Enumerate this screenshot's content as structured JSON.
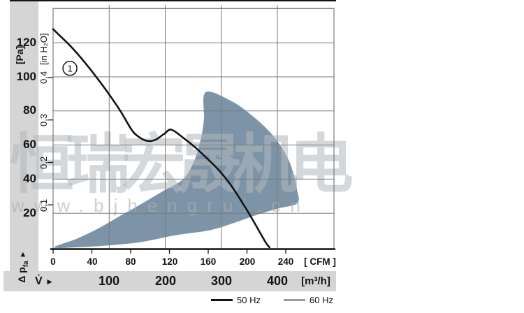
{
  "watermark": {
    "line1": "恒瑞宏晟机电",
    "line2": "www.bjhengrui.cn"
  },
  "colors": {
    "band": "#d5d5d5",
    "grid": "#7a7a7a",
    "axis": "#131313",
    "shade": "#7d94a8"
  },
  "chart_data": {
    "type": "line",
    "title": "",
    "description": "Fan air performance: pressure drop vs volume flow",
    "y_axis": {
      "primary_unit": "[Pa]",
      "secondary_unit": "[in H₂O]",
      "pa_ticks": [
        "120",
        "100",
        "80",
        "60",
        "40",
        "20"
      ],
      "inh2o_ticks": [
        "0,4",
        "0,3",
        "0,2",
        "0,1"
      ],
      "label_main": "Δ p",
      "label_sub": "fa",
      "label_arrow": "►",
      "pa_range": [
        0,
        141
      ]
    },
    "x_axis": {
      "cfm_ticks": [
        "0",
        "40",
        "80",
        "120",
        "160",
        "200",
        "240"
      ],
      "cfm_unit": "[ CFM ]",
      "m3h_ticks": [
        "100",
        "200",
        "300",
        "400"
      ],
      "m3h_unit": "[m³/h]",
      "label_v": "V̇",
      "label_arrow": "►",
      "m3h_range": [
        0,
        501
      ]
    },
    "grid": {
      "m3h_gridlines": [
        100,
        200,
        300,
        400
      ],
      "pa_gridlines": [
        20,
        40,
        60,
        80,
        100,
        120,
        140
      ],
      "inh2o_tickmarks_pa": [
        24.9,
        49.8,
        74.7,
        99.6
      ]
    },
    "annotation": {
      "label": "1",
      "m3h": 30,
      "pa": 105
    },
    "series": [
      {
        "name": "50 Hz",
        "color": "#131313",
        "points_m3h_pa": [
          [
            0,
            128
          ],
          [
            34,
            117
          ],
          [
            65,
            105
          ],
          [
            95,
            92
          ],
          [
            120,
            80
          ],
          [
            140,
            69
          ],
          [
            152,
            65
          ],
          [
            167,
            62.5
          ],
          [
            182,
            63
          ],
          [
            198,
            66.5
          ],
          [
            211,
            69
          ],
          [
            233,
            64
          ],
          [
            254,
            58.5
          ],
          [
            275,
            52
          ],
          [
            295,
            45.5
          ],
          [
            316,
            37
          ],
          [
            338,
            26
          ],
          [
            358,
            15
          ],
          [
            379,
            3
          ],
          [
            386,
            0
          ]
        ]
      },
      {
        "name": "60 Hz",
        "color": "#9b9b9b",
        "points_m3h_pa": []
      }
    ],
    "operating_range": {
      "color": "#7d94a8",
      "points_m3h_pa": [
        [
          2,
          0
        ],
        [
          42,
          5
        ],
        [
          80,
          11
        ],
        [
          117,
          18
        ],
        [
          155,
          25
        ],
        [
          196,
          33
        ],
        [
          232,
          40
        ],
        [
          252,
          51
        ],
        [
          263,
          63
        ],
        [
          269,
          75
        ],
        [
          272,
          91
        ],
        [
          317,
          86
        ],
        [
          356,
          77
        ],
        [
          391,
          66
        ],
        [
          416,
          54
        ],
        [
          429,
          43
        ],
        [
          435,
          34
        ],
        [
          436,
          26
        ],
        [
          404,
          23
        ],
        [
          363,
          19
        ],
        [
          320,
          14
        ],
        [
          279,
          10
        ],
        [
          217,
          7
        ],
        [
          155,
          3
        ],
        [
          92,
          1
        ],
        [
          42,
          0
        ]
      ]
    },
    "legend": [
      {
        "label": "50 Hz",
        "color": "#131313"
      },
      {
        "label": "60 Hz",
        "color": "#9b9b9b"
      }
    ]
  }
}
